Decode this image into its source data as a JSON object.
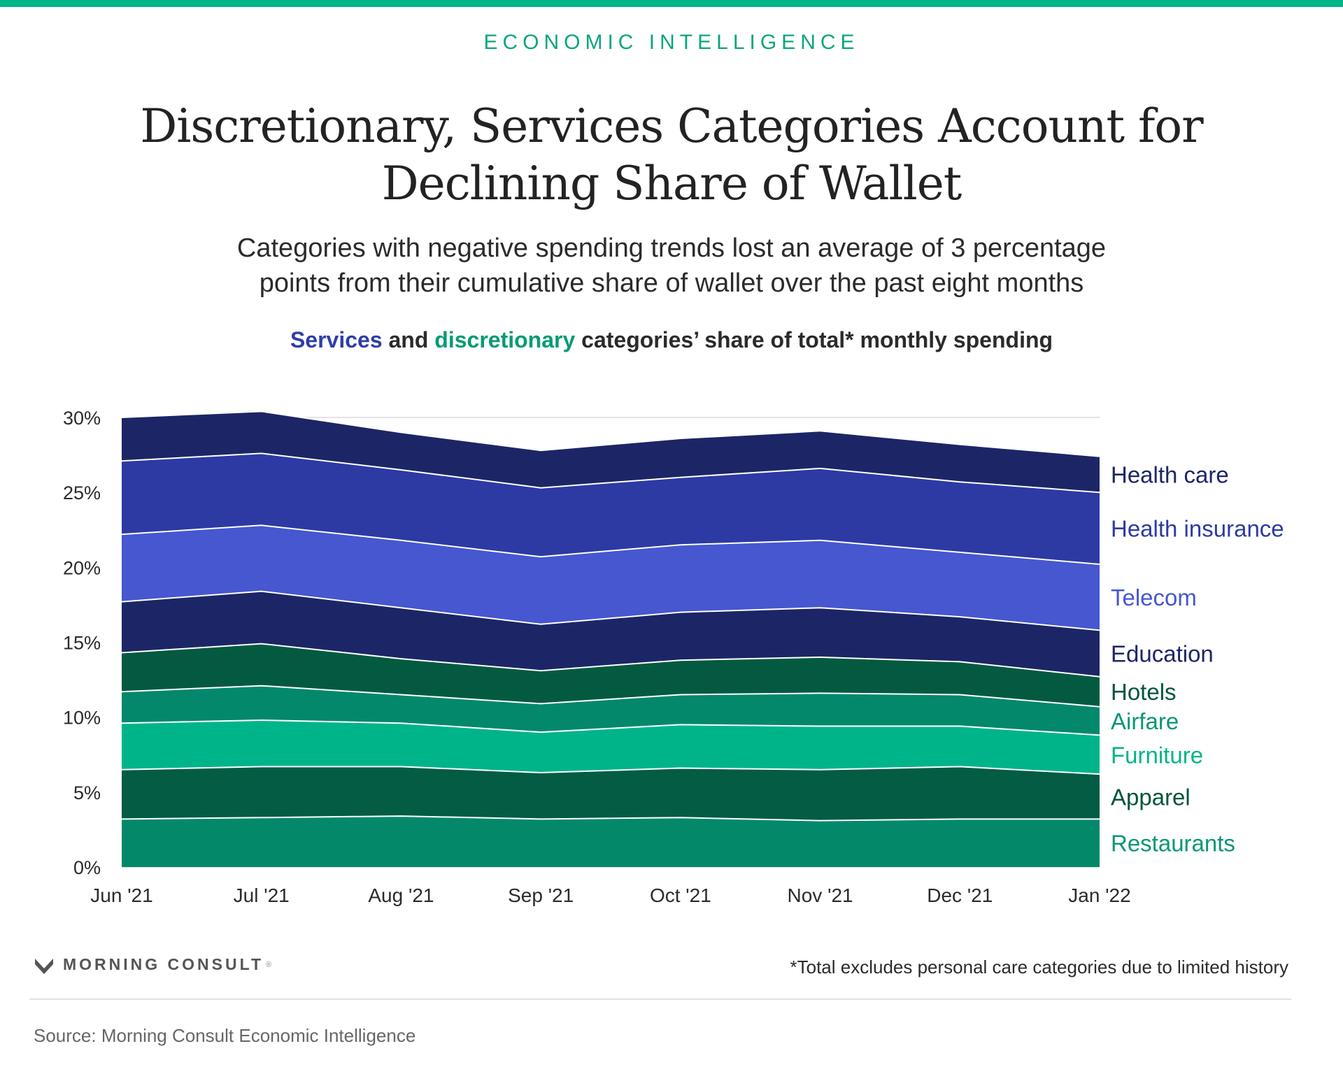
{
  "header": {
    "eyebrow": "ECONOMIC INTELLIGENCE",
    "title_line1": "Discretionary, Services Categories Account for",
    "title_line2": "Declining Share of Wallet",
    "subtitle_line1": "Categories with negative spending trends lost an average of 3 percentage",
    "subtitle_line2": "points from their cumulative share of wallet over the past eight months",
    "chart_heading_services": "Services",
    "chart_heading_and": " and ",
    "chart_heading_discretionary": "discretionary",
    "chart_heading_rest": " categories’ share of total* monthly spending"
  },
  "chart_data": {
    "type": "area",
    "stacked": true,
    "categories": [
      "Jun '21",
      "Jul '21",
      "Aug '21",
      "Sep '21",
      "Oct '21",
      "Nov '21",
      "Dec '21",
      "Jan '22"
    ],
    "y_ticks": [
      "0%",
      "5%",
      "10%",
      "15%",
      "20%",
      "25%",
      "30%"
    ],
    "ylim": [
      0,
      30
    ],
    "grid": true,
    "legend": "right, inline labels",
    "series": [
      {
        "name": "Restaurants",
        "color": "#03896a",
        "label_color": "#0a9677",
        "values": [
          3.2,
          3.3,
          3.4,
          3.2,
          3.3,
          3.1,
          3.2,
          3.2
        ]
      },
      {
        "name": "Apparel",
        "color": "#035c43",
        "label_color": "#04543e",
        "values": [
          3.3,
          3.4,
          3.3,
          3.1,
          3.3,
          3.4,
          3.5,
          3.0
        ]
      },
      {
        "name": "Furniture",
        "color": "#00b48a",
        "label_color": "#00b48a",
        "values": [
          3.1,
          3.1,
          2.9,
          2.7,
          2.9,
          2.9,
          2.7,
          2.6
        ]
      },
      {
        "name": "Airfare",
        "color": "#03886b",
        "label_color": "#0a9677",
        "values": [
          2.1,
          2.3,
          1.9,
          1.9,
          2.0,
          2.2,
          2.1,
          1.9
        ]
      },
      {
        "name": "Hotels",
        "color": "#045a40",
        "label_color": "#04543e",
        "values": [
          2.6,
          2.8,
          2.4,
          2.2,
          2.3,
          2.4,
          2.2,
          2.0
        ]
      },
      {
        "name": "Education",
        "color": "#1c2666",
        "label_color": "#1c2666",
        "values": [
          3.4,
          3.5,
          3.4,
          3.1,
          3.2,
          3.3,
          3.0,
          3.1
        ]
      },
      {
        "name": "Telecom",
        "color": "#4657d0",
        "label_color": "#4657d0",
        "values": [
          4.5,
          4.4,
          4.5,
          4.5,
          4.5,
          4.5,
          4.3,
          4.4
        ]
      },
      {
        "name": "Health insurance",
        "color": "#2d3aa4",
        "label_color": "#2d3aa4",
        "values": [
          4.9,
          4.8,
          4.7,
          4.6,
          4.5,
          4.8,
          4.7,
          4.8
        ]
      },
      {
        "name": "Health care",
        "color": "#1c2666",
        "label_color": "#1c2666",
        "values": [
          2.9,
          2.8,
          2.5,
          2.5,
          2.6,
          2.5,
          2.5,
          2.4
        ]
      }
    ]
  },
  "footer": {
    "brand": "MORNING CONSULT",
    "trademark": "®",
    "footnote": "*Total excludes personal care categories due to limited history",
    "source": "Source: Morning Consult Economic Intelligence"
  }
}
